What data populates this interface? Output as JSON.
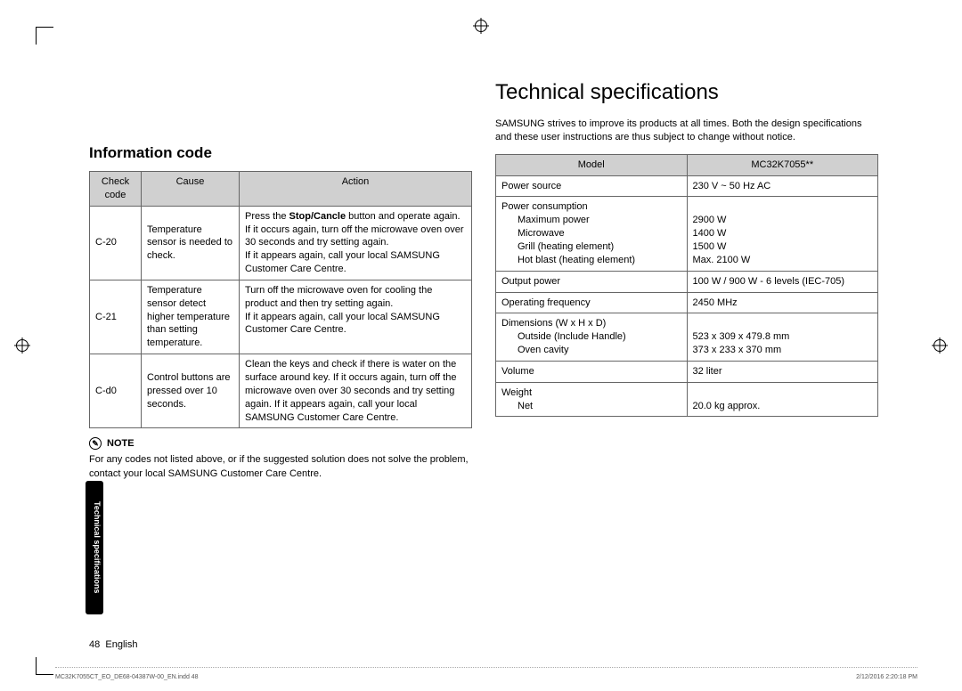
{
  "cropMarks": true,
  "headings": {
    "main": "Technical specifications",
    "info": "Information code"
  },
  "intro": "SAMSUNG strives to improve its products at all times. Both the design specifications and these user instructions are thus subject to change without notice.",
  "infoTable": {
    "headers": [
      "Check code",
      "Cause",
      "Action"
    ],
    "rows": [
      {
        "code": "C-20",
        "cause": "Temperature sensor is needed to check.",
        "action_pre": "Press the ",
        "action_bold": "Stop/Cancle",
        "action_post": " button and operate again. If it occurs again, turn off the microwave oven over 30 seconds and try setting again.\nIf it appears again, call your local SAMSUNG Customer Care Centre."
      },
      {
        "code": "C-21",
        "cause": "Temperature sensor detect higher temperature than setting temperature.",
        "action": "Turn off the microwave oven for cooling the product and then try setting again.\nIf it appears again, call your local SAMSUNG Customer Care Centre."
      },
      {
        "code": "C-d0",
        "cause": "Control buttons are pressed over 10 seconds.",
        "action": "Clean the keys and check if there is water on the surface around key. If it occurs again, turn off the microwave oven over 30 seconds and try setting again. If it appears again, call your local SAMSUNG Customer Care Centre."
      }
    ]
  },
  "note": {
    "label": "NOTE",
    "text": "For any codes not listed above, or if the suggested solution does not solve the problem, contact your local SAMSUNG Customer Care Centre."
  },
  "specTable": {
    "headers": [
      "Model",
      "MC32K7055**"
    ],
    "rows": [
      {
        "label": "Power source",
        "value": "230 V ~ 50 Hz AC"
      },
      {
        "label": "Power consumption",
        "sublabels": [
          "Maximum power",
          "Microwave",
          "Grill (heating element)",
          "Hot blast (heating element)"
        ],
        "subvalues": [
          "2900 W",
          "1400 W",
          "1500 W",
          "Max. 2100 W"
        ]
      },
      {
        "label": "Output power",
        "value": "100 W / 900 W - 6 levels (IEC-705)"
      },
      {
        "label": "Operating frequency",
        "value": "2450 MHz"
      },
      {
        "label": "Dimensions (W x H x D)",
        "sublabels": [
          "Outside (Include Handle)",
          "Oven cavity"
        ],
        "subvalues": [
          "523 x 309 x 479.8 mm",
          "373 x 233 x 370 mm"
        ]
      },
      {
        "label": "Volume",
        "value": "32 liter"
      },
      {
        "label": "Weight",
        "sublabels": [
          "Net"
        ],
        "subvalues": [
          "20.0 kg approx."
        ]
      }
    ]
  },
  "sideTab": "Technical specifications",
  "footer": {
    "pageNum": "48",
    "lang": "English"
  },
  "tinyFooter": {
    "left": "MC32K7055CT_EO_DE68-04387W-00_EN.indd   48",
    "right": "2/12/2016   2:20:18 PM"
  }
}
